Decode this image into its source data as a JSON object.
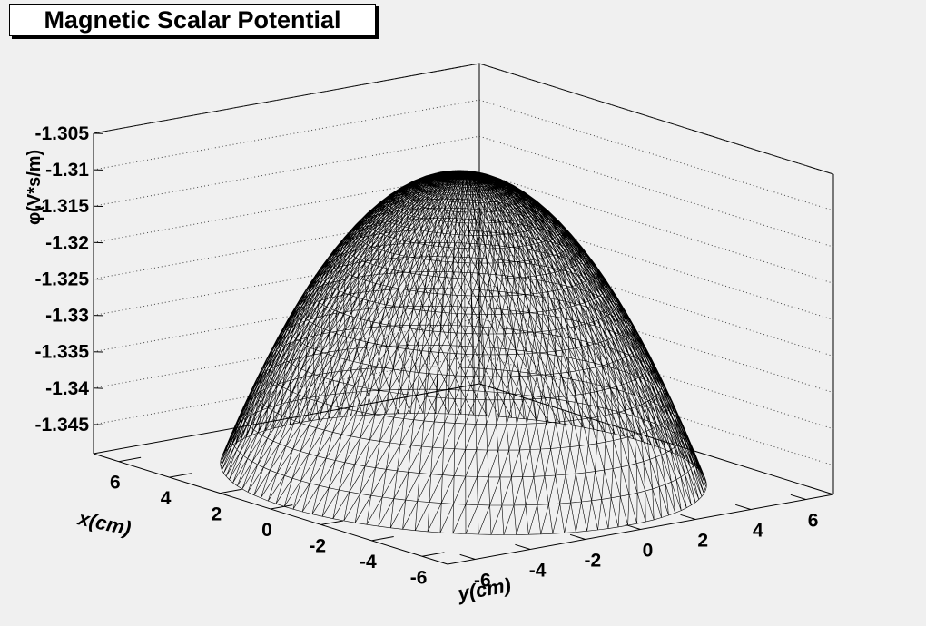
{
  "window": {
    "background": "#f0f0f0"
  },
  "chart_data": {
    "type": "surface",
    "title": "Magnetic Scalar Potential",
    "xlabel": "x(cm)",
    "ylabel": "y(cm)",
    "zlabel": "φ(V*s/m)",
    "xlim": [
      -7,
      7
    ],
    "ylim": [
      -7,
      7
    ],
    "zlim": [
      -1.349,
      -1.305
    ],
    "x_ticks": [
      6,
      4,
      2,
      0,
      -2,
      -4,
      -6
    ],
    "y_ticks": [
      6,
      4,
      2,
      0,
      -2,
      -4,
      -6
    ],
    "z_ticks": [
      -1.305,
      -1.31,
      -1.315,
      -1.32,
      -1.325,
      -1.33,
      -1.335,
      -1.34,
      -1.345
    ],
    "x_tick_labels": [
      "6",
      "4",
      "2",
      "0",
      "-2",
      "-4",
      "-6"
    ],
    "y_tick_labels": [
      "6",
      "4",
      "2",
      "0",
      "-2",
      "-4",
      "-6"
    ],
    "z_tick_labels": [
      "-1.305",
      "-1.31",
      "-1.315",
      "-1.32",
      "-1.325",
      "-1.33",
      "-1.335",
      "-1.34",
      "-1.345"
    ],
    "surface": {
      "shape": "paraboloid",
      "domain": "disk",
      "radius_cm": 6.5,
      "z_at_center": -1.3077,
      "z_at_rim": -1.349
    },
    "grid": true,
    "mesh_color": "#000000",
    "frame_color": "#000000"
  }
}
